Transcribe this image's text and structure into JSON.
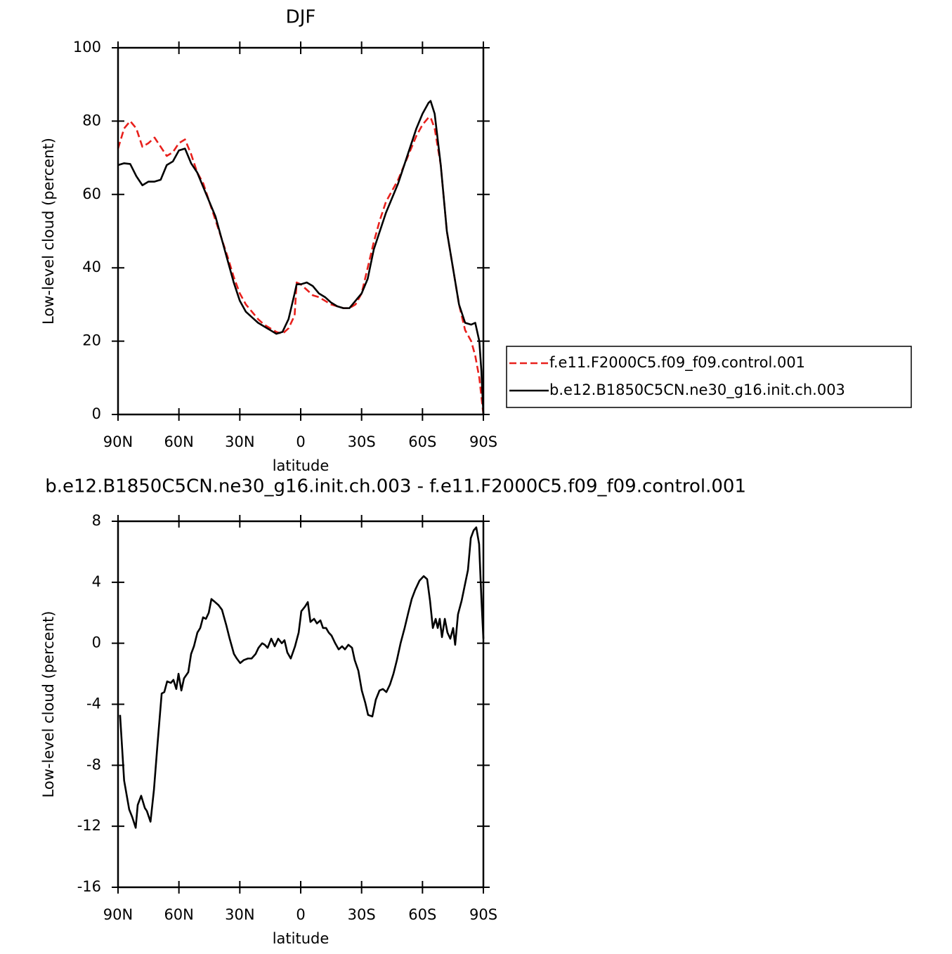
{
  "chart_data": [
    {
      "type": "line",
      "title": "DJF",
      "xlabel": "latitude",
      "ylabel": "Low-level cloud (percent)",
      "x": [
        90,
        87,
        84,
        81,
        78,
        75,
        72,
        69,
        66,
        63,
        60,
        57,
        54,
        51,
        48,
        45,
        42,
        39,
        36,
        33,
        30,
        27,
        24,
        21,
        18,
        15,
        12,
        9,
        6,
        3,
        2,
        0,
        -3,
        -6,
        -9,
        -12,
        -15,
        -18,
        -21,
        -24,
        -27,
        -30,
        -33,
        -36,
        -39,
        -42,
        -45,
        -48,
        -51,
        -54,
        -57,
        -60,
        -63,
        -64,
        -66,
        -69,
        -72,
        -75,
        -78,
        -81,
        -84,
        -86,
        -88,
        -89,
        -90
      ],
      "series": [
        {
          "name": "f.e11.F2000C5.f09_f09.control.001",
          "color": "#e8201c",
          "dash": true,
          "values": [
            72.5,
            78,
            80,
            78,
            73,
            74,
            75.5,
            73,
            70.5,
            71.5,
            74,
            75,
            71,
            66,
            63,
            58,
            53,
            48,
            43,
            37.5,
            33,
            30,
            28,
            26,
            24.5,
            23.5,
            22.5,
            22,
            23.5,
            27,
            36,
            35.5,
            34,
            32.5,
            32,
            31,
            30,
            29.5,
            29,
            29,
            30,
            33,
            40,
            47,
            53,
            58,
            61,
            64,
            68,
            72,
            76,
            79,
            81,
            81,
            78,
            68,
            50,
            40,
            30,
            23,
            20,
            16,
            10,
            5,
            0
          ]
        },
        {
          "name": "b.e12.B1850C5CN.ne30_g16.init.ch.003",
          "color": "#000000",
          "dash": false,
          "values": [
            68,
            68.5,
            68.3,
            65,
            62.5,
            63.5,
            63.5,
            64,
            68,
            69,
            72,
            72.5,
            68.5,
            66,
            62,
            58,
            54,
            48,
            42,
            36,
            31,
            28,
            26.5,
            25,
            24,
            23,
            22,
            22.5,
            26,
            33,
            35.5,
            35.5,
            36,
            35,
            33,
            32,
            30.5,
            29.5,
            29,
            29,
            31,
            33,
            37,
            45,
            50,
            55,
            59,
            63,
            68,
            73,
            78,
            82,
            85,
            85.5,
            82,
            68,
            50,
            40,
            30,
            25,
            24.5,
            25,
            20,
            12,
            0
          ]
        }
      ],
      "xlim": [
        90,
        -90
      ],
      "ylim": [
        0,
        100
      ],
      "xticks": [
        {
          "value": 90,
          "label": "90N"
        },
        {
          "value": 60,
          "label": "60N"
        },
        {
          "value": 30,
          "label": "30N"
        },
        0,
        {
          "value": -30,
          "label": "30S"
        },
        {
          "value": -60,
          "label": "60S"
        },
        {
          "value": -90,
          "label": "90S"
        }
      ],
      "yticks": [
        0,
        20,
        40,
        60,
        80,
        100
      ],
      "legend": "right"
    },
    {
      "type": "line",
      "title": "b.e12.B1850C5CN.ne30_g16.init.ch.003 - f.e11.F2000C5.f09_f09.control.001",
      "xlabel": "latitude",
      "ylabel": "Low-level cloud (percent)",
      "x": [
        89,
        87,
        84.5,
        83,
        81.3,
        80.3,
        78.6,
        76.8,
        75.8,
        74,
        72.3,
        70.6,
        68.5,
        67.2,
        65.8,
        64,
        62.7,
        61.3,
        60.2,
        58.8,
        57.5,
        55.4,
        54,
        52.6,
        50.9,
        49.5,
        48.1,
        46.7,
        45.3,
        44,
        42.2,
        40.5,
        38.8,
        36.7,
        35,
        32.9,
        31.5,
        29.8,
        28,
        26,
        24.2,
        22.2,
        20.8,
        19,
        17.7,
        16.3,
        14.5,
        12.8,
        11.1,
        9.3,
        8,
        6.6,
        4.9,
        2.8,
        1,
        -0.3,
        -2.1,
        -3.5,
        -4.8,
        -6.6,
        -8,
        -9.7,
        -11,
        -12.5,
        -13.8,
        -15.2,
        -17,
        -18.7,
        -20.4,
        -21.8,
        -23.5,
        -25.3,
        -26.6,
        -28.4,
        -30.1,
        -31.8,
        -33.2,
        -35.3,
        -37,
        -38.8,
        -40.5,
        -42.2,
        -44,
        -45.7,
        -47.4,
        -49.2,
        -51.2,
        -53,
        -54.7,
        -56.4,
        -58.5,
        -60.6,
        -62.3,
        -63.7,
        -65.1,
        -66.5,
        -67.5,
        -68.5,
        -69.6,
        -71,
        -72.3,
        -73.7,
        -75.1,
        -76.1,
        -77.5,
        -79.3,
        -81,
        -82.4,
        -83.8,
        -85.2,
        -86.5,
        -87.9,
        -89,
        -90
      ],
      "series": [
        {
          "color": "#000000",
          "dash": false,
          "values": [
            -4.7,
            -9,
            -10.9,
            -11.4,
            -12.1,
            -10.6,
            -10,
            -10.8,
            -11,
            -11.7,
            -9.6,
            -6.7,
            -3.3,
            -3.2,
            -2.5,
            -2.6,
            -2.4,
            -3,
            -2,
            -3.1,
            -2.3,
            -1.9,
            -0.7,
            -0.2,
            0.7,
            1,
            1.7,
            1.6,
            2,
            2.9,
            2.7,
            2.5,
            2.2,
            1.2,
            0.3,
            -0.7,
            -1,
            -1.3,
            -1.1,
            -1,
            -1,
            -0.7,
            -0.3,
            0,
            -0.1,
            -0.3,
            0.3,
            -0.2,
            0.3,
            0,
            0.2,
            -0.6,
            -1,
            -0.2,
            0.7,
            2.1,
            2.4,
            2.7,
            1.4,
            1.6,
            1.3,
            1.5,
            1,
            1,
            0.7,
            0.5,
            0,
            -0.4,
            -0.2,
            -0.4,
            -0.1,
            -0.3,
            -1.1,
            -1.8,
            -3.1,
            -3.9,
            -4.7,
            -4.8,
            -3.7,
            -3.1,
            -3,
            -3.2,
            -2.7,
            -2,
            -1.1,
            0,
            1,
            2,
            2.9,
            3.5,
            4.1,
            4.4,
            4.2,
            2.8,
            1,
            1.6,
            1,
            1.6,
            0.4,
            1.6,
            0.7,
            0.3,
            1,
            -0.1,
            1.9,
            2.8,
            3.9,
            4.8,
            6.9,
            7.4,
            7.6,
            6.5,
            3,
            0.3
          ]
        }
      ],
      "xlim": [
        90,
        -90
      ],
      "ylim": [
        -16,
        8
      ],
      "xticks": [
        {
          "value": 90,
          "label": "90N"
        },
        {
          "value": 60,
          "label": "60N"
        },
        {
          "value": 30,
          "label": "30N"
        },
        0,
        {
          "value": -30,
          "label": "30S"
        },
        {
          "value": -60,
          "label": "60S"
        },
        {
          "value": -90,
          "label": "90S"
        }
      ],
      "yticks": [
        -16,
        -12,
        -8,
        -4,
        0,
        4,
        8
      ]
    }
  ]
}
